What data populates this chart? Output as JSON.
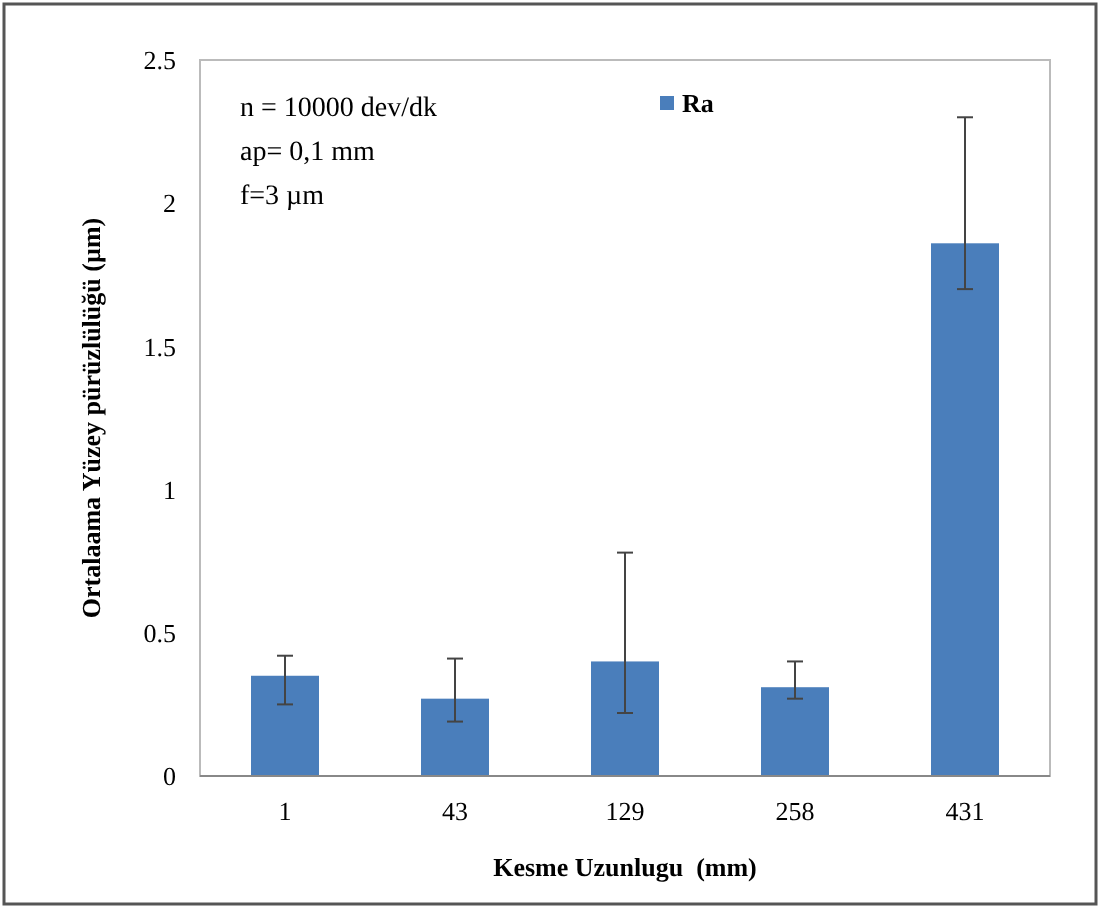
{
  "chart_data": {
    "type": "bar",
    "xlabel": "Kesme Uzunlugu  (mm)",
    "ylabel": "Ortalaama Yüzey pürüzlülüğü  (µm)",
    "categories": [
      "1",
      "43",
      "129",
      "258",
      "431"
    ],
    "series": [
      {
        "name": "Ra",
        "color": "#4a7ebb",
        "values": [
          0.35,
          0.27,
          0.4,
          0.31,
          1.86
        ],
        "errors": [
          [
            0.25,
            0.42
          ],
          [
            0.19,
            0.41
          ],
          [
            0.22,
            0.78
          ],
          [
            0.27,
            0.4
          ],
          [
            1.7,
            2.3
          ]
        ]
      }
    ],
    "ylim": [
      0,
      2.5
    ],
    "yticks": [
      0,
      0.5,
      1,
      1.5,
      2,
      2.5
    ],
    "grid": false,
    "legend": "top",
    "annotations": [
      "n = 10000 dev/dk",
      "ap= 0,1 mm",
      "f=3 µm"
    ]
  }
}
